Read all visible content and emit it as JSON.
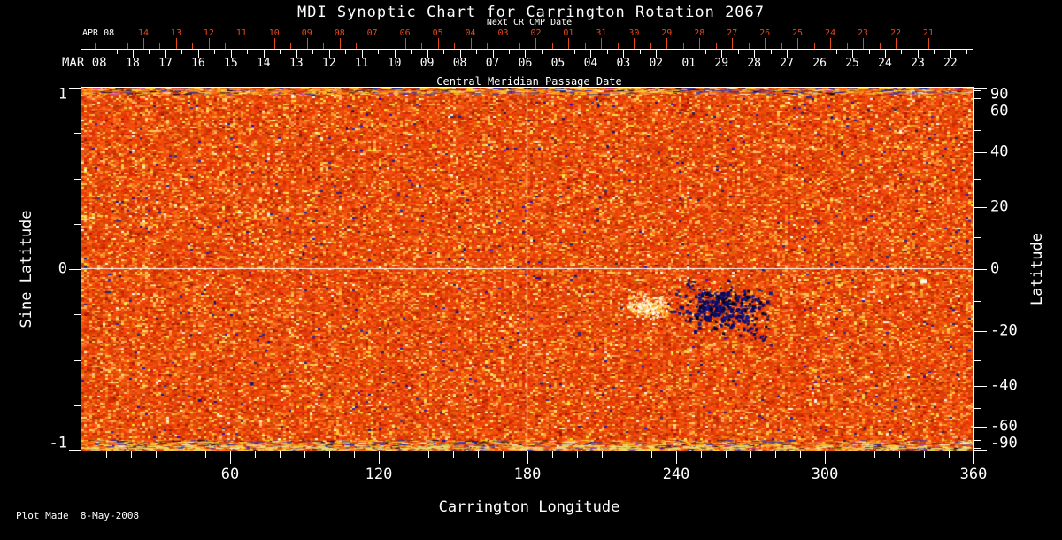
{
  "title": "MDI Synoptic Chart for Carrington Rotation 2067",
  "footer_note": "Plot Made  8-May-2008",
  "colors": {
    "background": "#000000",
    "foreground": "#ffffff",
    "next_cr_axis": "#e2491a",
    "image_base": "#e05000",
    "negative_polarity": "#0a0a66",
    "positive_bright": "#fff6d8"
  },
  "axes": {
    "top_next": {
      "title": "Next CR CMP Date",
      "month_label": "APR 08",
      "day_labels": [
        "14",
        "13",
        "12",
        "11",
        "10",
        "09",
        "08",
        "07",
        "06",
        "05",
        "04",
        "03",
        "02",
        "01",
        "31",
        "30",
        "29",
        "28",
        "27",
        "26",
        "25",
        "24",
        "23",
        "22",
        "21"
      ]
    },
    "top_cmp": {
      "title": "Central Meridian Passage Date",
      "month_label": "MAR 08",
      "day_labels": [
        "18",
        "17",
        "16",
        "15",
        "14",
        "13",
        "12",
        "11",
        "10",
        "09",
        "08",
        "07",
        "06",
        "05",
        "04",
        "03",
        "02",
        "01",
        "29",
        "28",
        "27",
        "26",
        "25",
        "24",
        "23",
        "22"
      ]
    },
    "bottom": {
      "title": "Carrington Longitude",
      "tick_values": [
        60,
        120,
        180,
        240,
        300,
        360
      ],
      "minor_step_deg": 10,
      "range": [
        0,
        360
      ]
    },
    "left": {
      "title": "Sine Latitude",
      "tick_values": [
        1,
        0,
        -1
      ],
      "minor_values": [
        0.75,
        0.5,
        0.25,
        -0.25,
        -0.5,
        -0.75
      ]
    },
    "right": {
      "title": "Latitude",
      "tick_values": [
        90,
        60,
        40,
        20,
        0,
        -20,
        -40,
        -60,
        -90
      ],
      "minor_values": [
        80,
        70,
        50,
        30,
        10,
        -10,
        -30,
        -50,
        -70,
        -80
      ]
    }
  },
  "chart_data": {
    "type": "heatmap",
    "title": "MDI Synoptic Chart for Carrington Rotation 2067",
    "description": "Solar photospheric magnetic field synoptic map (SOHO/MDI magnetogram) for Carrington rotation 2067; orange-red speckled field with dark blue negative-polarity flecks",
    "xlabel": "Carrington Longitude",
    "x_range": [
      0,
      360
    ],
    "x_ticks": [
      60,
      120,
      180,
      240,
      300,
      360
    ],
    "x_minor_step": 10,
    "ylabel_left": "Sine Latitude",
    "y_left_range": [
      -1,
      1
    ],
    "y_left_ticks": [
      1,
      0,
      -1
    ],
    "ylabel_right": "Latitude",
    "y_right_ticks": [
      90,
      60,
      40,
      20,
      0,
      -20,
      -40,
      -60,
      -90
    ],
    "top_axis_next_cr_dates": {
      "month": "APR 08",
      "days": [
        "14",
        "13",
        "12",
        "11",
        "10",
        "09",
        "08",
        "07",
        "06",
        "05",
        "04",
        "03",
        "02",
        "01",
        "31",
        "30",
        "29",
        "28",
        "27",
        "26",
        "25",
        "24",
        "23",
        "22",
        "21"
      ]
    },
    "top_axis_cmp_dates": {
      "month": "MAR 08",
      "days": [
        "18",
        "17",
        "16",
        "15",
        "14",
        "13",
        "12",
        "11",
        "10",
        "09",
        "08",
        "07",
        "06",
        "05",
        "04",
        "03",
        "02",
        "01",
        "29",
        "28",
        "27",
        "26",
        "25",
        "24",
        "23",
        "22"
      ]
    },
    "crosshair": {
      "longitude": 180,
      "sine_latitude": 0
    },
    "colormap": "black-red-orange-yellow-white with dark navy negative polarity specks",
    "features": [
      {
        "name": "active-region-dark-cluster",
        "longitude": 258,
        "latitude": -12,
        "lon_extent": 42,
        "lat_extent": 16
      },
      {
        "name": "bright-plage",
        "longitude": 229,
        "latitude": -12,
        "lon_extent": 21,
        "lat_extent": 10
      },
      {
        "name": "bright-spot",
        "longitude": 340,
        "latitude": -4,
        "lon_extent": 3,
        "lat_extent": 2
      }
    ],
    "plot_made": "8-May-2008"
  }
}
